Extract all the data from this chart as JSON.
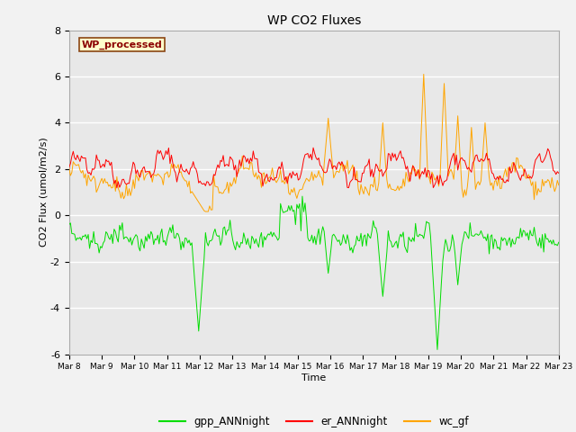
{
  "title": "WP CO2 Fluxes",
  "xlabel": "Time",
  "ylabel": "CO2 Flux (umol/m2/s)",
  "ylim": [
    -6,
    8
  ],
  "annotation": "WP_processed",
  "annotation_color": "#8B0000",
  "annotation_bg": "#FFFFCC",
  "annotation_border": "#8B4513",
  "tick_labels": [
    "Mar 8",
    "Mar 9",
    "Mar 10",
    "Mar 11",
    "Mar 12",
    "Mar 13",
    "Mar 14",
    "Mar 15",
    "Mar 16",
    "Mar 17",
    "Mar 18",
    "Mar 19",
    "Mar 20",
    "Mar 21",
    "Mar 22",
    "Mar 23"
  ],
  "gpp_color": "#00DD00",
  "er_color": "#FF0000",
  "wc_color": "#FFA500",
  "legend_labels": [
    "gpp_ANNnight",
    "er_ANNnight",
    "wc_gf"
  ],
  "fig_bg_color": "#F2F2F2",
  "plot_bg_color": "#E8E8E8",
  "n_points": 360,
  "seed": 42
}
